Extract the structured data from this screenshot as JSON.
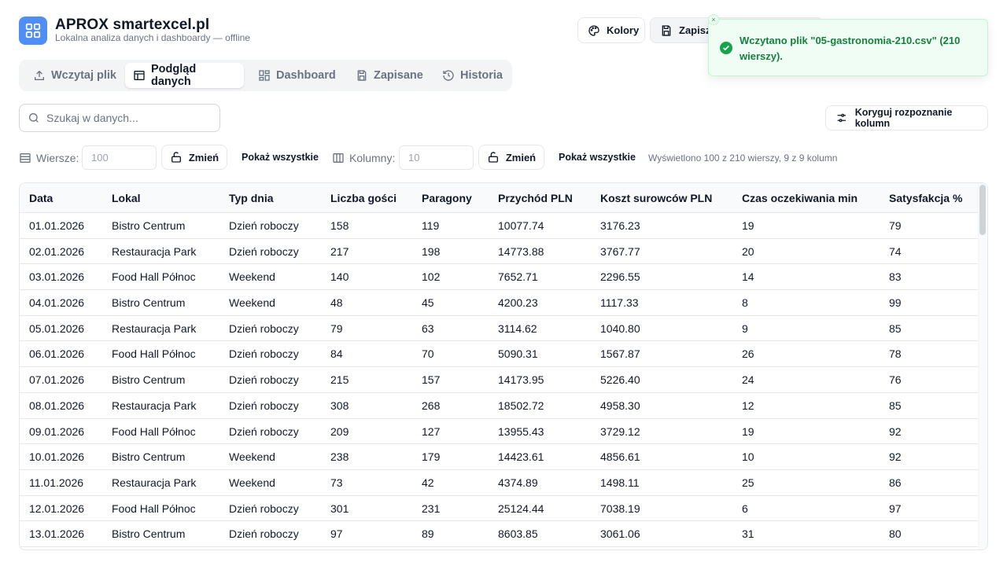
{
  "header": {
    "title": "APROX smartexcel.pl",
    "subtitle": "Lokalna analiza danych i dashboardy — offline",
    "kolory_label": "Kolory",
    "zapisz_label": "Zapisz"
  },
  "toast": {
    "message": "Wczytano plik \"05-gastronomia-210.csv\" (210 wierszy).",
    "close_glyph": "×"
  },
  "tabs": [
    {
      "label": "Wczytaj plik",
      "icon": "upload-icon"
    },
    {
      "label": "Podgląd danych",
      "icon": "table-icon"
    },
    {
      "label": "Dashboard",
      "icon": "dashboard-icon"
    },
    {
      "label": "Zapisane",
      "icon": "save-icon"
    },
    {
      "label": "Historia",
      "icon": "history-icon"
    }
  ],
  "search": {
    "placeholder": "Szukaj w danych..."
  },
  "fix_columns_label": "Koryguj rozpoznanie kolumn",
  "controls": {
    "rows_label": "Wiersze:",
    "rows_placeholder": "100",
    "cols_label": "Kolumny:",
    "cols_placeholder": "10",
    "change_label": "Zmień",
    "show_all_label": "Pokaż wszystkie",
    "info": "Wyświetlono 100 z 210 wierszy, 9 z 9 kolumn"
  },
  "table": {
    "columns": [
      "Data",
      "Lokal",
      "Typ dnia",
      "Liczba gości",
      "Paragony",
      "Przychód PLN",
      "Koszt surowców PLN",
      "Czas oczekiwania min",
      "Satysfakcja %"
    ],
    "rows": [
      [
        "01.01.2026",
        "Bistro Centrum",
        "Dzień roboczy",
        "158",
        "119",
        "10077.74",
        "3176.23",
        "19",
        "79"
      ],
      [
        "02.01.2026",
        "Restauracja Park",
        "Dzień roboczy",
        "217",
        "198",
        "14773.88",
        "3767.77",
        "20",
        "74"
      ],
      [
        "03.01.2026",
        "Food Hall Północ",
        "Weekend",
        "140",
        "102",
        "7652.71",
        "2296.55",
        "14",
        "83"
      ],
      [
        "04.01.2026",
        "Bistro Centrum",
        "Weekend",
        "48",
        "45",
        "4200.23",
        "1117.33",
        "8",
        "99"
      ],
      [
        "05.01.2026",
        "Restauracja Park",
        "Dzień roboczy",
        "79",
        "63",
        "3114.62",
        "1040.80",
        "9",
        "85"
      ],
      [
        "06.01.2026",
        "Food Hall Północ",
        "Dzień roboczy",
        "84",
        "70",
        "5090.31",
        "1567.87",
        "26",
        "78"
      ],
      [
        "07.01.2026",
        "Bistro Centrum",
        "Dzień roboczy",
        "215",
        "157",
        "14173.95",
        "5226.40",
        "24",
        "76"
      ],
      [
        "08.01.2026",
        "Restauracja Park",
        "Dzień roboczy",
        "308",
        "268",
        "18502.72",
        "4958.30",
        "12",
        "85"
      ],
      [
        "09.01.2026",
        "Food Hall Północ",
        "Dzień roboczy",
        "209",
        "127",
        "13955.43",
        "3729.12",
        "19",
        "92"
      ],
      [
        "10.01.2026",
        "Bistro Centrum",
        "Weekend",
        "238",
        "179",
        "14423.61",
        "4856.61",
        "10",
        "92"
      ],
      [
        "11.01.2026",
        "Restauracja Park",
        "Weekend",
        "73",
        "42",
        "4374.89",
        "1498.11",
        "25",
        "86"
      ],
      [
        "12.01.2026",
        "Food Hall Północ",
        "Dzień roboczy",
        "301",
        "231",
        "25124.44",
        "7038.19",
        "6",
        "97"
      ],
      [
        "13.01.2026",
        "Bistro Centrum",
        "Dzień roboczy",
        "97",
        "89",
        "8603.85",
        "3061.06",
        "31",
        "80"
      ]
    ]
  },
  "colors": {
    "accent": "#4f8ef7",
    "success": "#16a34a",
    "border": "#e5e7eb"
  }
}
